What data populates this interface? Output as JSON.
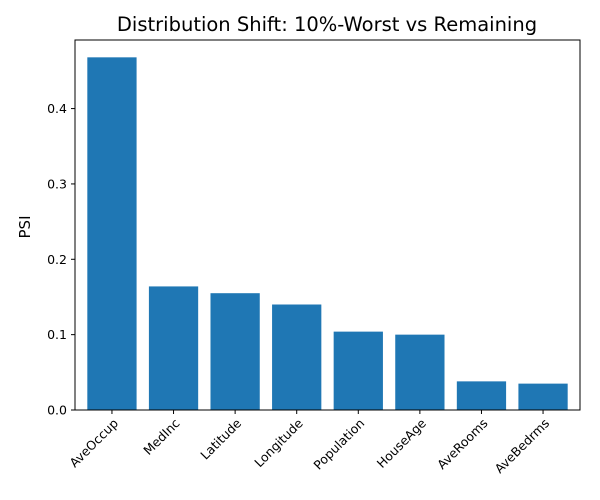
{
  "chart_data": {
    "type": "bar",
    "title": "Distribution Shift: 10%-Worst vs Remaining",
    "xlabel": "",
    "ylabel": "PSI",
    "categories": [
      "AveOccup",
      "MedInc",
      "Latitude",
      "Longitude",
      "Population",
      "HouseAge",
      "AveRooms",
      "AveBedrms"
    ],
    "values": [
      0.468,
      0.164,
      0.155,
      0.14,
      0.104,
      0.1,
      0.038,
      0.035
    ],
    "ylim": [
      0,
      0.491
    ],
    "yticks": [
      "0.0",
      "0.1",
      "0.2",
      "0.3",
      "0.4"
    ],
    "x_tick_rotation": "45 degrees",
    "bar_color": "#1f77b4",
    "grid": false,
    "legend": "none"
  }
}
